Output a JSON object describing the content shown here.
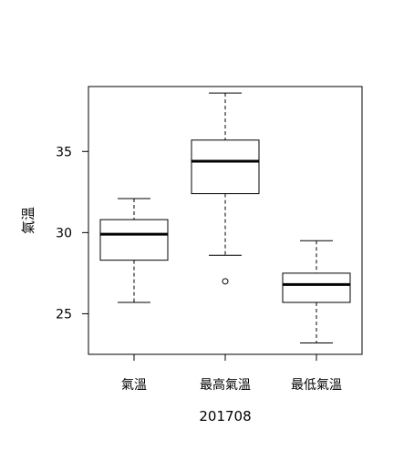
{
  "chart_data": {
    "type": "boxplot",
    "title": "",
    "xlabel": "201708",
    "ylabel": "氣溫",
    "ylim": [
      22.5,
      39.0
    ],
    "yticks": [
      25,
      30,
      35
    ],
    "grid": false,
    "legend": "none",
    "categories": [
      "氣溫",
      "最高氣溫",
      "最低氣溫"
    ],
    "boxes": [
      {
        "category": "氣溫",
        "whisker_low": 25.7,
        "q1": 28.3,
        "median": 29.9,
        "q3": 30.8,
        "whisker_high": 32.1,
        "outliers": []
      },
      {
        "category": "最高氣溫",
        "whisker_low": 28.6,
        "q1": 32.4,
        "median": 34.4,
        "q3": 35.7,
        "whisker_high": 38.6,
        "outliers": [
          27.0
        ]
      },
      {
        "category": "最低氣溫",
        "whisker_low": 23.2,
        "q1": 25.7,
        "median": 26.8,
        "q3": 27.5,
        "whisker_high": 29.5,
        "outliers": []
      }
    ]
  }
}
